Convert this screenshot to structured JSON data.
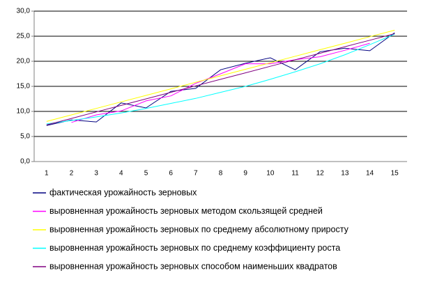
{
  "chart_data": {
    "type": "line",
    "categories": [
      1,
      2,
      3,
      4,
      5,
      6,
      7,
      8,
      9,
      10,
      11,
      12,
      13,
      14,
      15
    ],
    "ylim": [
      0,
      30
    ],
    "yticks": [
      {
        "value": 0,
        "label": "0,0"
      },
      {
        "value": 5,
        "label": "5,0"
      },
      {
        "value": 10,
        "label": "10,0"
      },
      {
        "value": 15,
        "label": "15,0"
      },
      {
        "value": 20,
        "label": "20,0"
      },
      {
        "value": 25,
        "label": "25,0"
      },
      {
        "value": 30,
        "label": "30,0"
      }
    ],
    "grid": true,
    "legend": "bottom",
    "series": [
      {
        "name": "фактическая урожайность зерновых",
        "color": "#000080",
        "values": [
          7.2,
          8.3,
          7.9,
          11.7,
          10.7,
          14.0,
          14.6,
          18.3,
          19.6,
          20.7,
          18.3,
          21.9,
          22.6,
          22.1,
          25.7
        ]
      },
      {
        "name": "выровненная урожайность зерновых методом скользящей средней",
        "color": "#ff00ff",
        "values": [
          null,
          7.8,
          9.3,
          10.1,
          12.1,
          13.1,
          15.6,
          17.5,
          19.5,
          19.5,
          20.3,
          20.9,
          22.2,
          23.6,
          null
        ]
      },
      {
        "name": "выровненная урожайность зерновых по среднему абсолютному приросту",
        "color": "#ffff00",
        "values": [
          8.0,
          9.3,
          10.6,
          11.9,
          13.2,
          14.5,
          15.8,
          17.1,
          18.4,
          19.7,
          21.0,
          22.3,
          23.6,
          24.9,
          26.2
        ]
      },
      {
        "name": "выровненная урожайность зерновых по среднему коэффициенту роста",
        "color": "#00ffff",
        "values": [
          7.5,
          8.2,
          8.9,
          9.7,
          10.6,
          11.6,
          12.6,
          13.8,
          15.0,
          16.4,
          17.9,
          19.5,
          21.3,
          23.3,
          25.4
        ]
      },
      {
        "name": "выровненная урожайность зерновых способом наименьших квадратов",
        "color": "#800080",
        "values": [
          7.3,
          8.6,
          9.9,
          11.2,
          12.5,
          13.8,
          15.1,
          16.4,
          17.7,
          19.0,
          20.3,
          21.6,
          22.9,
          24.2,
          25.5
        ]
      }
    ]
  }
}
